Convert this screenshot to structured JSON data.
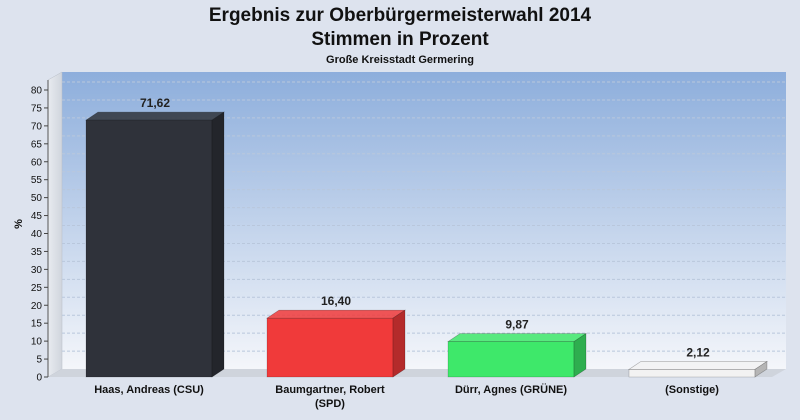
{
  "chart_data": {
    "type": "bar",
    "title": "Ergebnis zur Oberbürgermeisterwahl 2014",
    "subtitle": "Stimmen in Prozent",
    "caption": "Große Kreisstadt Germering",
    "ylabel": "%",
    "xlabel": "",
    "ylim": [
      0,
      80
    ],
    "yticks": [
      0,
      5,
      10,
      15,
      20,
      25,
      30,
      35,
      40,
      45,
      50,
      55,
      60,
      65,
      70,
      75,
      80
    ],
    "grid": true,
    "categories": [
      [
        "Haas, Andreas (CSU)"
      ],
      [
        "Baumgartner, Robert",
        "(SPD)"
      ],
      [
        "Dürr, Agnes (GRÜNE)"
      ],
      [
        "(Sonstige)"
      ]
    ],
    "values": [
      71.62,
      16.4,
      9.87,
      2.12
    ],
    "value_labels": [
      "71,62",
      "16,40",
      "9,87",
      "2,12"
    ],
    "colors": [
      "#2f323a",
      "#f03a3a",
      "#3ee86a",
      "#f2f2f2"
    ]
  }
}
